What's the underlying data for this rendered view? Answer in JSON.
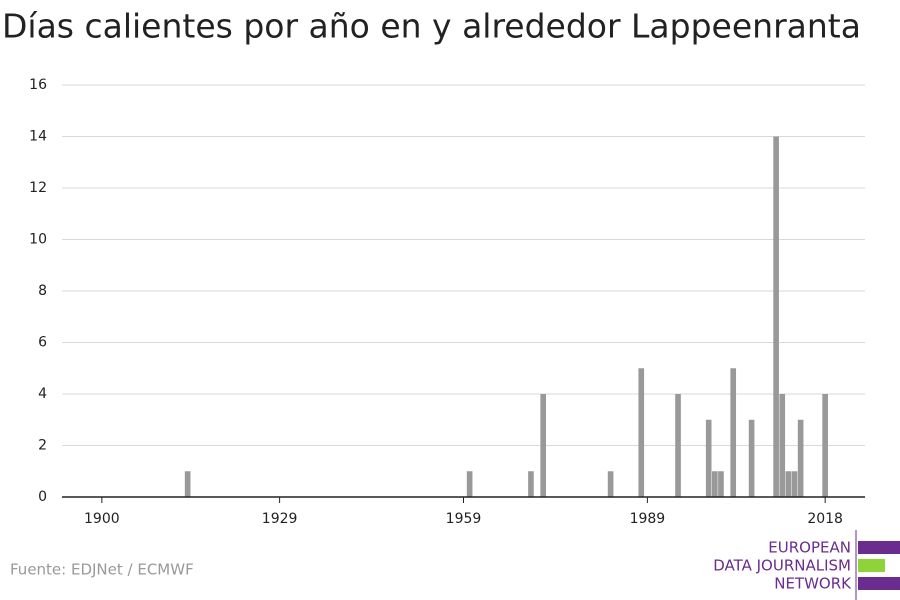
{
  "chart_data": {
    "type": "bar",
    "title": "Días calientes por año en y alrededor Lappeenranta",
    "x": [
      1914,
      1960,
      1970,
      1972,
      1983,
      1988,
      1994,
      1999,
      2000,
      2001,
      2003,
      2006,
      2010,
      2011,
      2012,
      2013,
      2014,
      2018
    ],
    "values": [
      1,
      1,
      1,
      4,
      1,
      5,
      4,
      3,
      1,
      1,
      5,
      3,
      14,
      4,
      1,
      1,
      3,
      4
    ],
    "color": "#999999",
    "xlim": [
      1893.5,
      2024.5
    ],
    "xticks": [
      1900,
      1929,
      1959,
      1989,
      2018
    ],
    "ylim": [
      0,
      16
    ],
    "yticks": [
      0,
      2,
      4,
      6,
      8,
      10,
      12,
      14,
      16
    ],
    "grid": true,
    "source": "Fuente: EDJNet / ECMWF",
    "logo": [
      "EUROPEAN",
      "DATA JOURNALISM",
      "NETWORK"
    ]
  }
}
